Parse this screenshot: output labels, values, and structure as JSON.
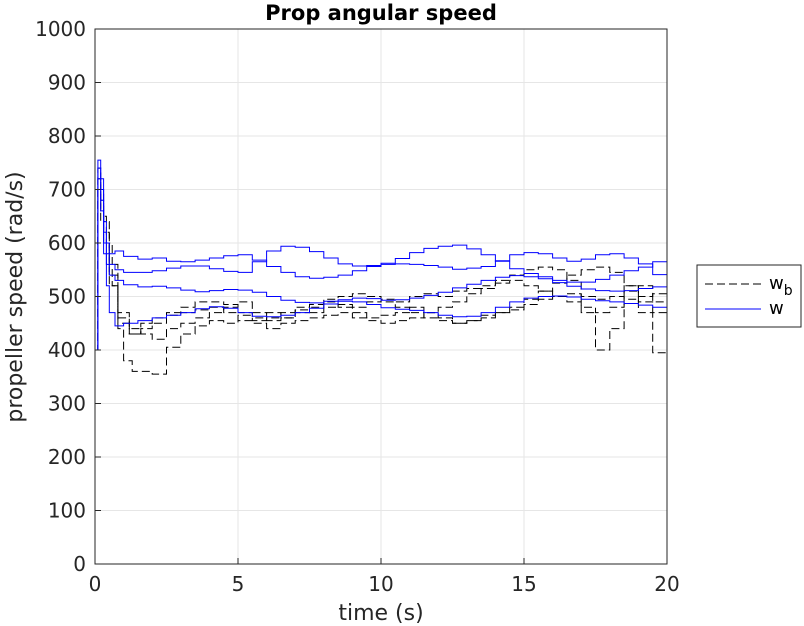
{
  "chart_data": {
    "type": "line",
    "title": "Prop angular speed",
    "xlabel": "time (s)",
    "ylabel": "propeller speed (rad/s)",
    "xlim": [
      0,
      20
    ],
    "ylim": [
      0,
      1000
    ],
    "xticks": [
      0,
      5,
      10,
      15,
      20
    ],
    "yticks": [
      0,
      100,
      200,
      300,
      400,
      500,
      600,
      700,
      800,
      900,
      1000
    ],
    "grid": true,
    "legend_position": "right",
    "legend": [
      {
        "main": "w",
        "sub": "b",
        "style": "dashed",
        "color": "#000000"
      },
      {
        "main": "w",
        "sub": "",
        "style": "solid",
        "color": "#0000ff"
      }
    ],
    "series": [
      {
        "group": "w_b",
        "color": "#000000",
        "dash": true,
        "x": [
          0,
          0.1,
          0.2,
          0.3,
          0.4,
          0.6,
          0.8,
          1.0,
          1.3,
          1.6,
          2.0,
          2.5,
          3,
          3.5,
          4,
          4.5,
          5,
          5.5,
          6,
          6.5,
          7,
          7.5,
          8,
          8.5,
          9,
          9.5,
          10,
          10.5,
          11,
          11.5,
          12,
          12.5,
          13,
          13.5,
          14,
          14.5,
          15,
          15.5,
          16,
          16.5,
          17,
          17.5,
          18,
          18.5,
          19,
          19.5,
          20
        ],
        "y": [
          400,
          740,
          700,
          650,
          600,
          520,
          440,
          380,
          360,
          360,
          355,
          405,
          430,
          445,
          455,
          450,
          465,
          455,
          470,
          460,
          475,
          470,
          480,
          485,
          480,
          490,
          495,
          490,
          500,
          505,
          500,
          510,
          515,
          520,
          530,
          540,
          550,
          555,
          550,
          530,
          470,
          400,
          440,
          520,
          470,
          395,
          450
        ]
      },
      {
        "group": "w_b",
        "color": "#000000",
        "dash": true,
        "x": [
          0,
          0.1,
          0.2,
          0.3,
          0.5,
          0.8,
          1.2,
          1.6,
          2,
          2.5,
          3,
          3.5,
          4,
          4.5,
          5,
          5.5,
          6,
          6.5,
          7,
          7.5,
          8,
          8.5,
          9,
          9.5,
          10,
          10.5,
          11,
          11.5,
          12,
          12.5,
          13,
          13.5,
          14,
          14.5,
          15,
          15.5,
          16,
          16.5,
          17,
          17.5,
          18,
          18.5,
          19,
          19.5,
          20
        ],
        "y": [
          400,
          720,
          680,
          640,
          560,
          470,
          430,
          440,
          450,
          465,
          470,
          475,
          480,
          470,
          455,
          450,
          440,
          450,
          455,
          460,
          465,
          470,
          460,
          455,
          450,
          455,
          460,
          470,
          480,
          490,
          505,
          515,
          525,
          530,
          520,
          510,
          500,
          490,
          480,
          470,
          480,
          510,
          520,
          490,
          480
        ]
      },
      {
        "group": "w_b",
        "color": "#000000",
        "dash": true,
        "x": [
          0,
          0.1,
          0.2,
          0.3,
          0.5,
          0.8,
          1.2,
          1.6,
          2,
          2.5,
          3,
          3.5,
          4,
          4.5,
          5,
          5.5,
          6,
          6.5,
          7,
          7.5,
          8,
          8.5,
          9,
          9.5,
          10,
          10.5,
          11,
          11.5,
          12,
          12.5,
          13,
          13.5,
          14,
          14.5,
          15,
          15.5,
          16,
          16.5,
          17,
          17.5,
          18,
          18.5,
          19,
          19.5,
          20
        ],
        "y": [
          400,
          700,
          660,
          620,
          540,
          460,
          440,
          430,
          420,
          440,
          450,
          460,
          470,
          480,
          490,
          470,
          460,
          470,
          480,
          485,
          490,
          480,
          470,
          460,
          465,
          470,
          480,
          470,
          460,
          450,
          455,
          465,
          470,
          475,
          485,
          495,
          500,
          505,
          500,
          495,
          500,
          495,
          500,
          505,
          500
        ]
      },
      {
        "group": "w_b",
        "color": "#000000",
        "dash": true,
        "x": [
          0,
          0.1,
          0.2,
          0.3,
          0.5,
          0.8,
          1.2,
          1.6,
          2,
          2.5,
          3,
          3.5,
          4,
          4.5,
          5,
          5.5,
          6,
          6.5,
          7,
          7.5,
          8,
          8.5,
          9,
          9.5,
          10,
          10.5,
          11,
          11.5,
          12,
          12.5,
          13,
          13.5,
          14,
          14.5,
          15,
          15.5,
          16,
          16.5,
          17,
          17.5,
          18,
          18.5,
          19,
          19.5,
          20
        ],
        "y": [
          400,
          680,
          640,
          600,
          520,
          450,
          430,
          450,
          460,
          470,
          480,
          490,
          490,
          485,
          470,
          460,
          455,
          460,
          470,
          480,
          495,
          500,
          505,
          500,
          490,
          480,
          470,
          460,
          455,
          450,
          455,
          460,
          470,
          480,
          495,
          510,
          525,
          540,
          550,
          555,
          545,
          520,
          490,
          470,
          460
        ]
      },
      {
        "group": "w",
        "color": "#0000ff",
        "dash": false,
        "x": [
          0,
          0.1,
          0.2,
          0.3,
          0.4,
          0.5,
          0.7,
          1.0,
          1.5,
          2,
          2.5,
          3,
          3.5,
          4,
          4.5,
          5,
          5.5,
          6,
          6.5,
          7,
          7.5,
          8,
          8.5,
          9,
          9.5,
          10,
          10.5,
          11,
          11.5,
          12,
          12.5,
          13,
          13.5,
          14,
          14.5,
          15,
          15.5,
          16,
          16.5,
          17,
          17.5,
          18,
          18.5,
          19,
          19.5,
          20
        ],
        "y": [
          400,
          755,
          720,
          640,
          600,
          580,
          585,
          575,
          570,
          572,
          566,
          565,
          568,
          572,
          576,
          578,
          568,
          556,
          545,
          537,
          534,
          536,
          540,
          548,
          556,
          562,
          571,
          582,
          590,
          594,
          596,
          589,
          578,
          566,
          552,
          543,
          537,
          530,
          527,
          527,
          532,
          540,
          548,
          555,
          565,
          580
        ]
      },
      {
        "group": "w",
        "color": "#0000ff",
        "dash": false,
        "x": [
          0,
          0.1,
          0.2,
          0.3,
          0.4,
          0.5,
          0.7,
          1.0,
          1.5,
          2,
          2.5,
          3,
          3.5,
          4,
          4.5,
          5,
          5.5,
          6,
          6.5,
          7,
          7.5,
          8,
          8.5,
          9,
          9.5,
          10,
          10.5,
          11,
          11.5,
          12,
          12.5,
          13,
          13.5,
          14,
          14.5,
          15,
          15.5,
          16,
          16.5,
          17,
          17.5,
          18,
          18.5,
          19,
          19.5,
          20
        ],
        "y": [
          400,
          740,
          700,
          620,
          580,
          560,
          550,
          545,
          545,
          548,
          553,
          557,
          557,
          552,
          547,
          545,
          565,
          585,
          594,
          592,
          584,
          572,
          561,
          557,
          558,
          560,
          561,
          560,
          558,
          555,
          551,
          553,
          556,
          567,
          578,
          582,
          580,
          572,
          566,
          570,
          578,
          580,
          572,
          561,
          541,
          524
        ]
      },
      {
        "group": "w",
        "color": "#0000ff",
        "dash": false,
        "x": [
          0,
          0.1,
          0.2,
          0.3,
          0.4,
          0.5,
          0.7,
          1.0,
          1.5,
          2,
          2.5,
          3,
          3.5,
          4,
          4.5,
          5,
          5.5,
          6,
          6.5,
          7,
          7.5,
          8,
          8.5,
          9,
          9.5,
          10,
          10.5,
          11,
          11.5,
          12,
          12.5,
          13,
          13.5,
          14,
          14.5,
          15,
          15.5,
          16,
          16.5,
          17,
          17.5,
          18,
          18.5,
          19,
          19.5,
          20
        ],
        "y": [
          400,
          720,
          680,
          600,
          560,
          540,
          530,
          522,
          518,
          519,
          516,
          512,
          509,
          511,
          513,
          512,
          508,
          500,
          493,
          489,
          488,
          491,
          494,
          497,
          496,
          493,
          494,
          497,
          502,
          508,
          516,
          523,
          530,
          536,
          539,
          537,
          533,
          526,
          519,
          514,
          511,
          510,
          511,
          515,
          518,
          521
        ]
      },
      {
        "group": "w",
        "color": "#0000ff",
        "dash": false,
        "x": [
          0,
          0.1,
          0.2,
          0.3,
          0.4,
          0.5,
          0.7,
          1.0,
          1.5,
          2,
          2.5,
          3,
          3.5,
          4,
          4.5,
          5,
          5.5,
          6,
          6.5,
          7,
          7.5,
          8,
          8.5,
          9,
          9.5,
          10,
          10.5,
          11,
          11.5,
          12,
          12.5,
          13,
          13.5,
          14,
          14.5,
          15,
          15.5,
          16,
          16.5,
          17,
          17.5,
          18,
          18.5,
          19,
          19.5,
          20
        ],
        "y": [
          400,
          700,
          660,
          580,
          520,
          470,
          445,
          450,
          455,
          460,
          465,
          470,
          477,
          481,
          478,
          470,
          463,
          462,
          465,
          470,
          478,
          486,
          491,
          490,
          485,
          479,
          476,
          474,
          470,
          465,
          462,
          463,
          470,
          480,
          490,
          497,
          500,
          501,
          499,
          495,
          492,
          490,
          487,
          484,
          480,
          474
        ]
      }
    ]
  }
}
